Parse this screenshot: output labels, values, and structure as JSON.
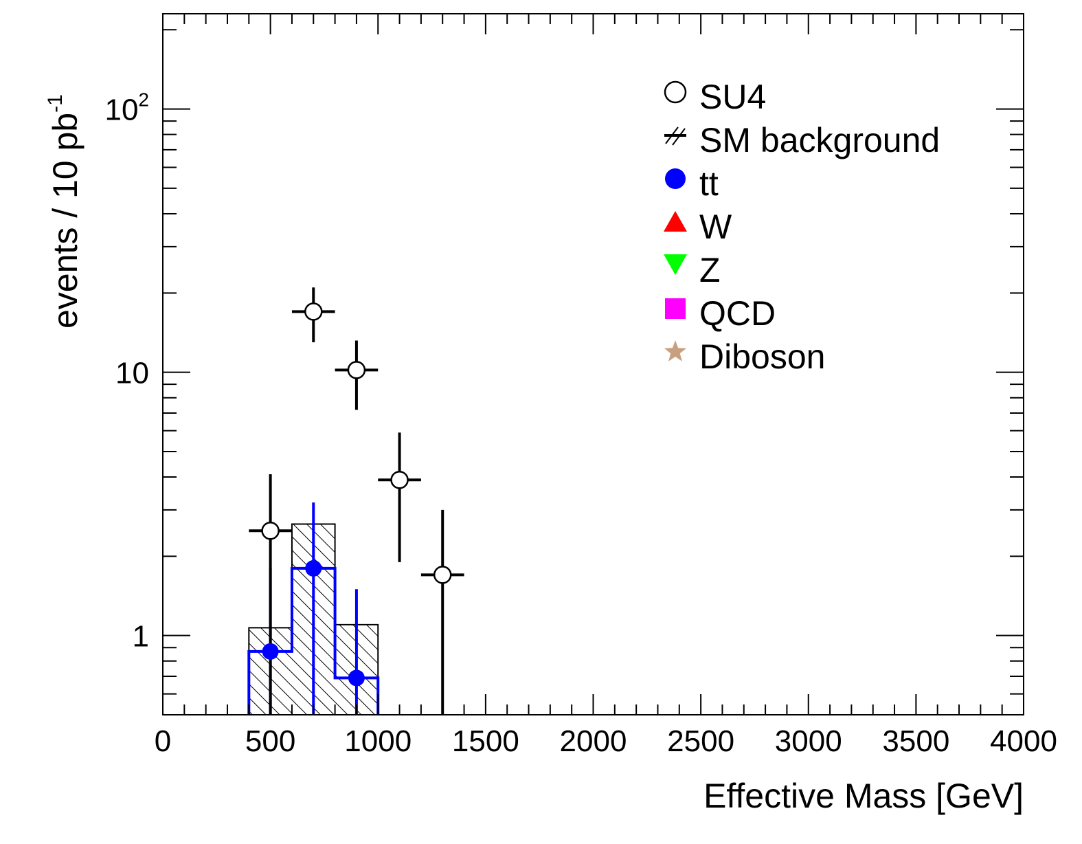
{
  "chart_data": {
    "type": "histogram",
    "xlabel": "Effective Mass [GeV]",
    "ylabel": "events / 10 pb",
    "ylabel_superscript": "-1",
    "xlim": [
      0,
      4000
    ],
    "ylim": [
      0.5,
      230
    ],
    "yscale": "log",
    "x_ticks": [
      "0",
      "500",
      "1000",
      "1500",
      "2000",
      "2500",
      "3000",
      "3500",
      "4000"
    ],
    "y_ticks": [
      {
        "value": 1,
        "label": "1"
      },
      {
        "value": 10,
        "label": "10"
      },
      {
        "value": 100,
        "label": "10",
        "sup": "2"
      }
    ],
    "grid": false,
    "legend_placement": "top-right",
    "series": [
      {
        "name": "SU4",
        "kind": "points",
        "marker": "open-circle",
        "color": "#000000",
        "points": [
          {
            "x": 500,
            "y": 2.5,
            "xerr": 100,
            "ylo": 0,
            "yhi": 4.1
          },
          {
            "x": 700,
            "y": 17.0,
            "xerr": 100,
            "ylo": 13.0,
            "yhi": 21.0
          },
          {
            "x": 900,
            "y": 10.2,
            "xerr": 100,
            "ylo": 7.2,
            "yhi": 13.2
          },
          {
            "x": 1100,
            "y": 3.9,
            "xerr": 100,
            "ylo": 1.9,
            "yhi": 5.9
          },
          {
            "x": 1300,
            "y": 1.7,
            "xerr": 100,
            "ylo": 0,
            "yhi": 3.0
          }
        ]
      },
      {
        "name": "SM background",
        "kind": "hatched-histogram",
        "color": "#000000",
        "bins": [
          {
            "x0": 400,
            "x1": 600,
            "y": 1.07
          },
          {
            "x0": 600,
            "x1": 800,
            "y": 2.65
          },
          {
            "x0": 800,
            "x1": 1000,
            "y": 1.1
          }
        ]
      },
      {
        "name": "tt",
        "kind": "histogram-points",
        "marker": "filled-circle",
        "color": "#0000ff",
        "bins": [
          {
            "x0": 400,
            "x1": 600,
            "y": 0.87,
            "ylo": 0,
            "yhi": 1.8
          },
          {
            "x0": 600,
            "x1": 800,
            "y": 1.8,
            "ylo": 0,
            "yhi": 3.2
          },
          {
            "x0": 800,
            "x1": 1000,
            "y": 0.69,
            "ylo": 0,
            "yhi": 1.5
          }
        ]
      },
      {
        "name": "W",
        "kind": "points",
        "marker": "triangle-up",
        "color": "#ff0000",
        "points": []
      },
      {
        "name": "Z",
        "kind": "points",
        "marker": "triangle-down",
        "color": "#00ff00",
        "points": []
      },
      {
        "name": "QCD",
        "kind": "points",
        "marker": "square",
        "color": "#ff00ff",
        "points": []
      },
      {
        "name": "Diboson",
        "kind": "points",
        "marker": "star",
        "color": "#c8a080",
        "points": []
      }
    ]
  }
}
